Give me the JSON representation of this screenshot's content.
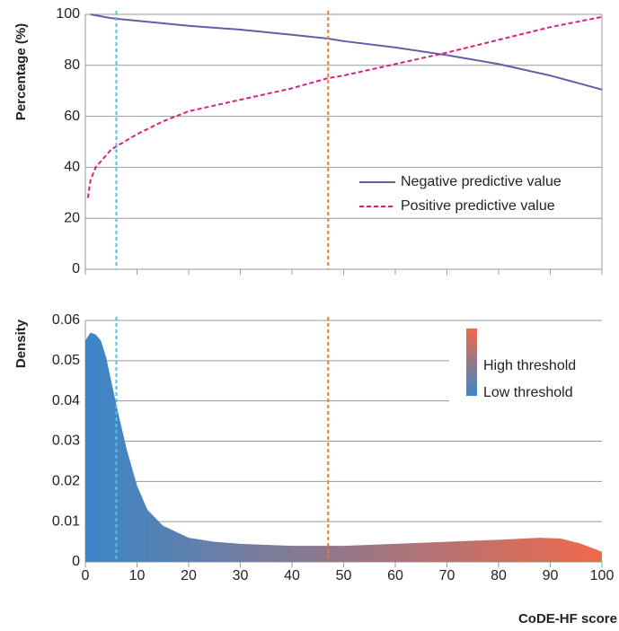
{
  "chart_data": [
    {
      "type": "line",
      "y_label": "Percentage (%)",
      "xlim": [
        0,
        100
      ],
      "ylim": [
        0,
        100
      ],
      "yticks": [
        0,
        20,
        40,
        60,
        80,
        100
      ],
      "grid": true,
      "legend": "lower-right",
      "vlines": [
        {
          "value": 6,
          "color": "#4fc3e8"
        },
        {
          "value": 47,
          "color": "#f07b2c"
        }
      ],
      "series": [
        {
          "name": "Negative predictive value",
          "color": "#6a5aa8",
          "dash": "solid",
          "x": [
            1,
            5,
            10,
            20,
            30,
            40,
            47,
            50,
            60,
            70,
            80,
            90,
            100
          ],
          "values": [
            100,
            98.5,
            97.5,
            95.5,
            94,
            92,
            90.5,
            89.5,
            87,
            84,
            80.5,
            76,
            70.5
          ]
        },
        {
          "name": "Positive predictive value",
          "color": "#d6237f",
          "dash": "dashed",
          "x": [
            0.5,
            1,
            2,
            5,
            10,
            15,
            20,
            30,
            40,
            47,
            50,
            60,
            70,
            80,
            90,
            100
          ],
          "values": [
            28,
            35,
            40,
            47,
            53,
            58,
            62,
            66.5,
            71,
            75,
            76,
            80.5,
            85,
            90,
            95,
            99
          ]
        }
      ]
    },
    {
      "type": "area",
      "y_label": "Density",
      "x_label": "CoDE-HF score",
      "xlim": [
        0,
        100
      ],
      "xticks": [
        0,
        10,
        20,
        30,
        40,
        50,
        60,
        70,
        80,
        90,
        100
      ],
      "ylim": [
        0,
        0.06
      ],
      "yticks": [
        0,
        0.01,
        0.02,
        0.03,
        0.04,
        0.05,
        0.06
      ],
      "grid": true,
      "gradient": {
        "low_color": "#3a86c8",
        "high_color": "#f0694a",
        "high_label": "High threshold",
        "low_label": "Low threshold"
      },
      "x": [
        0,
        1,
        2,
        3,
        4,
        5,
        6,
        8,
        10,
        12,
        15,
        20,
        25,
        30,
        40,
        47,
        50,
        60,
        70,
        80,
        88,
        92,
        96,
        100
      ],
      "values": [
        0.055,
        0.057,
        0.0565,
        0.055,
        0.051,
        0.045,
        0.039,
        0.028,
        0.019,
        0.013,
        0.009,
        0.006,
        0.005,
        0.0045,
        0.004,
        0.004,
        0.004,
        0.0045,
        0.005,
        0.0055,
        0.006,
        0.0058,
        0.0045,
        0.0025
      ]
    }
  ]
}
